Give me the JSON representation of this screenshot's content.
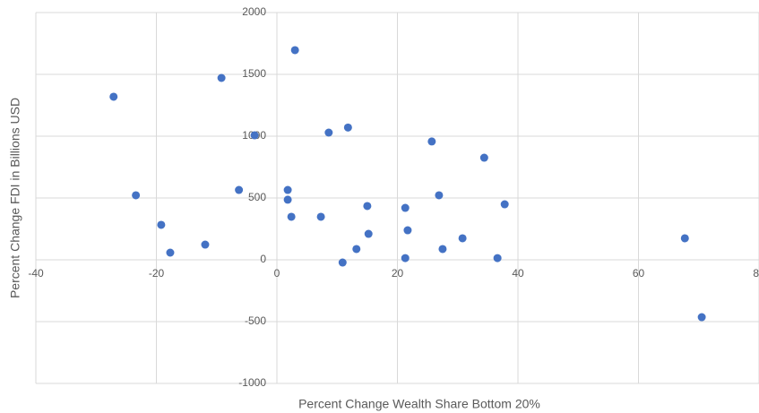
{
  "chart_data": {
    "type": "scatter",
    "x_label": "Percent Change Wealth Share Bottom 20%",
    "y_label": "Percent Change FDI in Billions USD",
    "color": "#4472c4",
    "x": [
      -27.1,
      -23.4,
      -19.2,
      -17.7,
      -11.9,
      -9.2,
      -6.3,
      -3.7,
      1.8,
      1.8,
      2.4,
      3.0,
      7.3,
      8.6,
      11.8,
      10.9,
      13.2,
      15.0,
      15.2,
      21.3,
      21.3,
      21.7,
      25.7,
      26.9,
      27.5,
      30.8,
      34.4,
      36.6,
      37.8,
      67.7,
      70.5
    ],
    "values": [
      1319,
      522,
      283,
      58,
      123,
      1471,
      565,
      1007,
      565,
      486,
      348,
      1696,
      348,
      1029,
      1070,
      -22,
      87,
      435,
      210,
      420,
      14,
      239,
      957,
      522,
      87,
      174,
      826,
      14,
      449,
      174,
      -464
    ],
    "xlim": [
      -40,
      80
    ],
    "xticks": [
      -40,
      -20,
      0,
      20,
      40,
      60,
      80
    ],
    "ylim": [
      -1000,
      2000
    ],
    "yticks": [
      -1000,
      -500,
      0,
      500,
      1000,
      1500,
      2000
    ],
    "grid": true
  }
}
